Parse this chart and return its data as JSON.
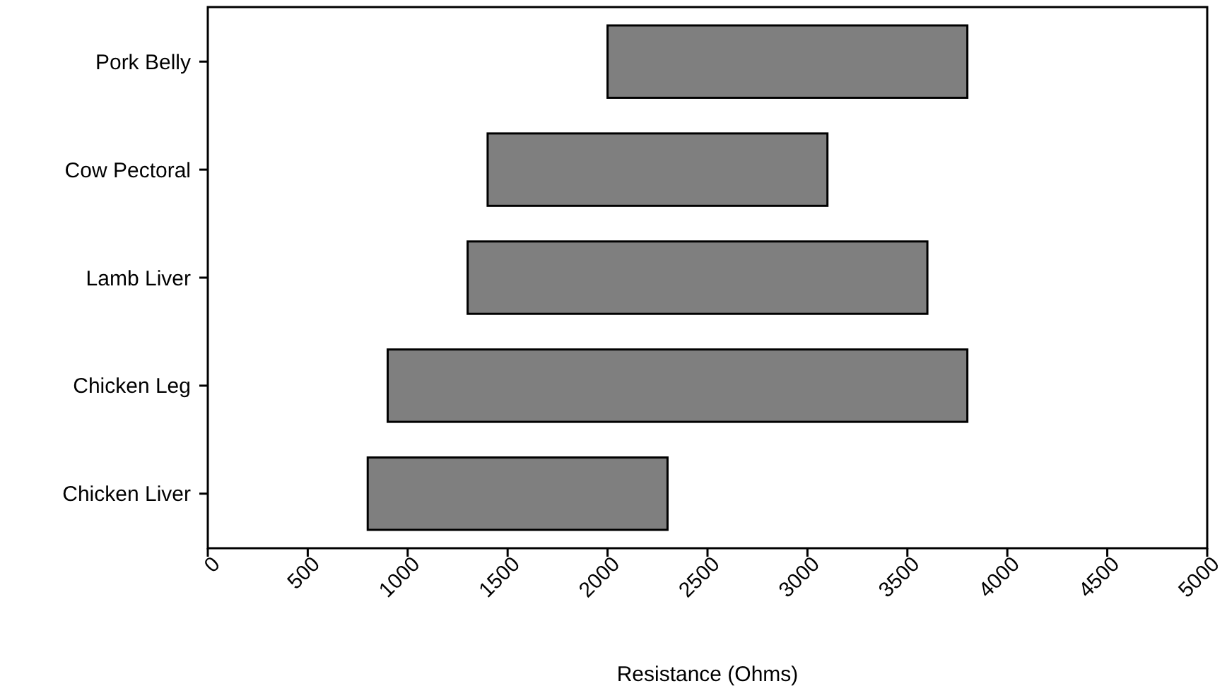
{
  "chart_data": {
    "type": "bar",
    "orientation": "horizontal",
    "xlabel": "Resistance (Ohms)",
    "categories": [
      "Pork Belly",
      "Cow Pectoral",
      "Lamb Liver",
      "Chicken Leg",
      "Chicken Liver"
    ],
    "base": [
      2000,
      1400,
      1300,
      900,
      800
    ],
    "values": [
      1800,
      1700,
      2300,
      2900,
      1500
    ],
    "color": "#7f7f7f",
    "xlim": [
      0,
      5000
    ],
    "xticks": [
      0,
      500,
      1000,
      1500,
      2000,
      2500,
      3000,
      3500,
      4000,
      4500,
      5000
    ],
    "grid": false
  }
}
